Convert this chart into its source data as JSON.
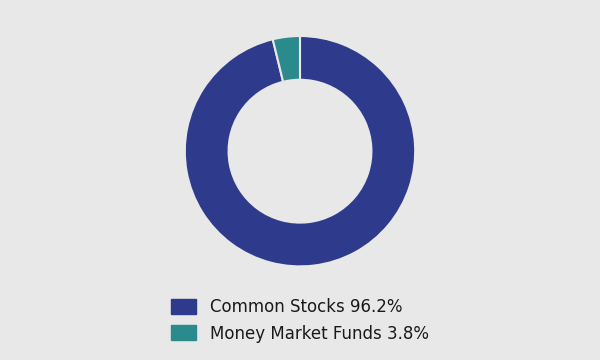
{
  "labels": [
    "Common Stocks",
    "Money Market Funds"
  ],
  "values": [
    96.2,
    3.8
  ],
  "colors": [
    "#2e3a8c",
    "#2a8a8c"
  ],
  "legend_labels": [
    "Common Stocks 96.2%",
    "Money Market Funds 3.8%"
  ],
  "background_color": "#e8e8e8",
  "donut_width": 0.38,
  "startangle": 90,
  "figsize": [
    6.0,
    3.6
  ],
  "legend_fontsize": 12
}
